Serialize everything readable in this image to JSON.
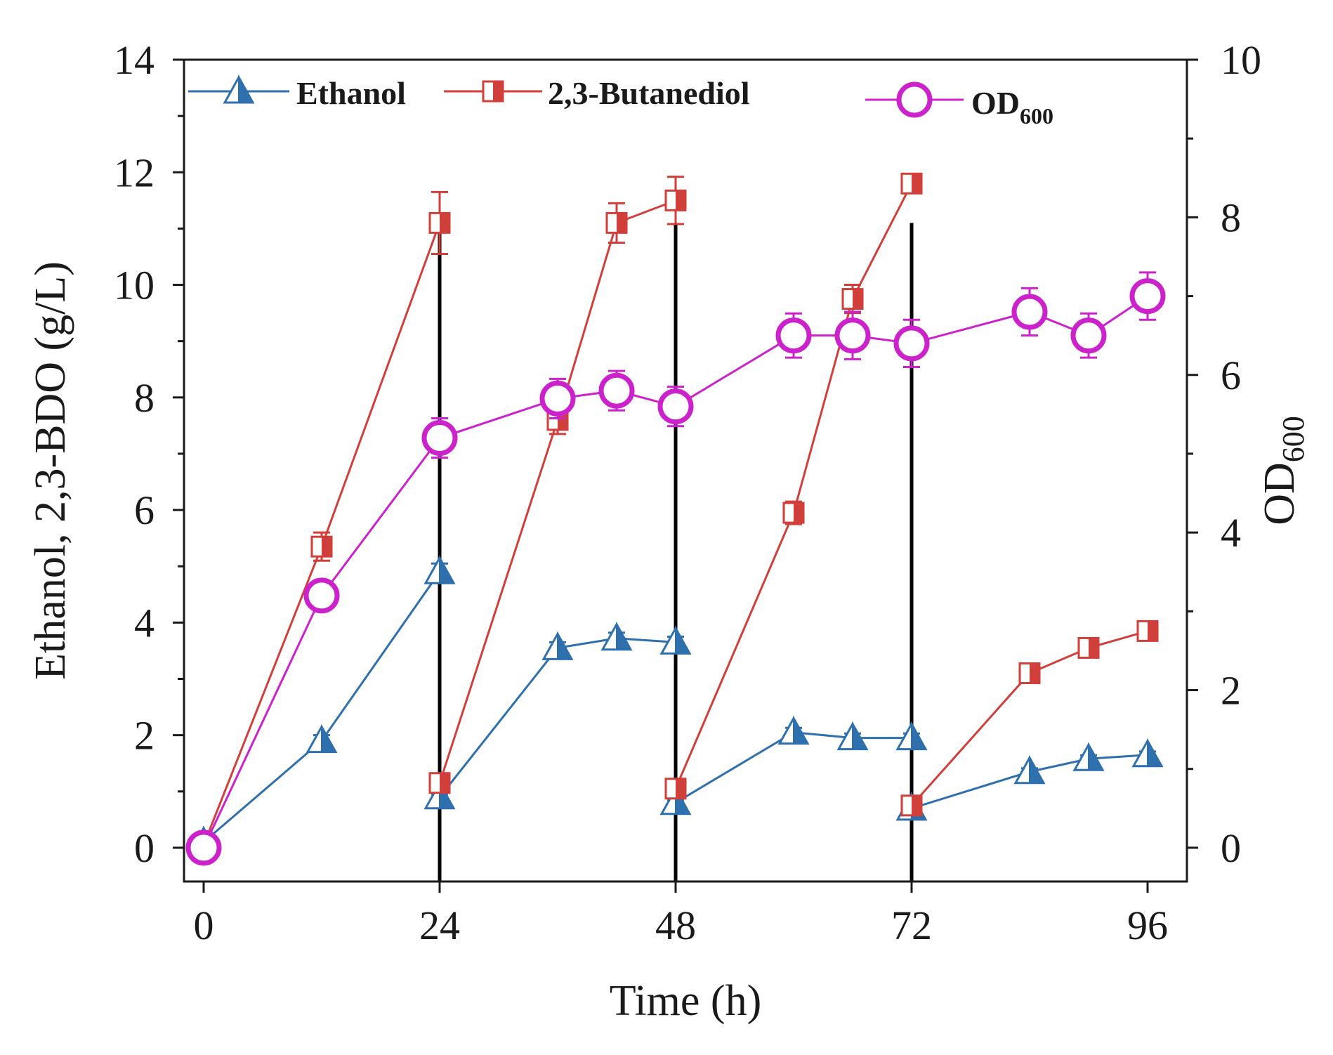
{
  "chart_data": {
    "type": "line",
    "xlabel": "Time (h)",
    "ylabel_left": "Ethanol, 2,3-BDO (g/L)",
    "ylabel_right": {
      "main": "OD",
      "sub": "600"
    },
    "xlim": [
      -2,
      100
    ],
    "xticks": [
      0,
      24,
      48,
      72,
      96
    ],
    "ylim_left": [
      -0.6,
      14
    ],
    "yticks_left": [
      0,
      2,
      4,
      6,
      8,
      10,
      12,
      14
    ],
    "ylim_right": [
      -0.4286,
      10
    ],
    "yticks_right": [
      0,
      2,
      4,
      6,
      8,
      10
    ],
    "feeding_times": [
      24,
      48,
      72
    ],
    "series": [
      {
        "name": "Ethanol",
        "legend_label": "Ethanol",
        "axis": "left",
        "marker": "triangle",
        "color": "#2e6fad",
        "segments": [
          {
            "x": [
              0,
              12,
              24
            ],
            "y": [
              0.1,
              1.9,
              4.9
            ],
            "err": [
              0.05,
              0.1,
              0.15
            ]
          },
          {
            "x": [
              24,
              36,
              42,
              48
            ],
            "y": [
              0.9,
              3.55,
              3.72,
              3.65
            ],
            "err": [
              0.05,
              0.1,
              0.1,
              0.1
            ]
          },
          {
            "x": [
              48,
              60,
              66,
              72
            ],
            "y": [
              0.8,
              2.05,
              1.95,
              1.95
            ],
            "err": [
              0.05,
              0.08,
              0.08,
              0.08
            ]
          },
          {
            "x": [
              72,
              84,
              90,
              96
            ],
            "y": [
              0.7,
              1.35,
              1.58,
              1.65
            ],
            "err": [
              0.05,
              0.06,
              0.06,
              0.06
            ]
          }
        ]
      },
      {
        "name": "2,3-Butanediol",
        "legend_label": "2,3-Butanediol",
        "axis": "left",
        "marker": "half-square",
        "color": "#d13f3a",
        "segments": [
          {
            "x": [
              0,
              12,
              24
            ],
            "y": [
              0.05,
              5.35,
              11.1
            ],
            "err": [
              0.05,
              0.25,
              0.55
            ]
          },
          {
            "x": [
              24,
              36,
              42,
              48
            ],
            "y": [
              1.15,
              7.6,
              11.1,
              11.5
            ],
            "err": [
              0.1,
              0.25,
              0.35,
              0.42
            ]
          },
          {
            "x": [
              48,
              60,
              66,
              72
            ],
            "y": [
              1.05,
              5.95,
              9.75,
              11.8
            ],
            "err": [
              0.08,
              0.2,
              0.25,
              0.15
            ]
          },
          {
            "x": [
              72,
              84,
              90,
              96
            ],
            "y": [
              0.75,
              3.1,
              3.55,
              3.85
            ],
            "err": [
              0.06,
              0.12,
              0.12,
              0.12
            ]
          }
        ]
      },
      {
        "name": "OD600",
        "legend_label": {
          "main": "OD",
          "sub": "600"
        },
        "axis": "right",
        "marker": "circle",
        "color": "#cc22cc",
        "segments": [
          {
            "x": [
              0,
              12,
              24,
              36,
              42,
              48,
              60,
              66,
              72,
              84,
              90,
              96
            ],
            "y": [
              0.0,
              3.2,
              5.2,
              5.7,
              5.8,
              5.6,
              6.5,
              6.5,
              6.4,
              6.8,
              6.5,
              7.0
            ],
            "err": [
              0.05,
              0.1,
              0.25,
              0.25,
              0.25,
              0.25,
              0.28,
              0.3,
              0.3,
              0.3,
              0.28,
              0.3
            ]
          }
        ]
      }
    ]
  }
}
